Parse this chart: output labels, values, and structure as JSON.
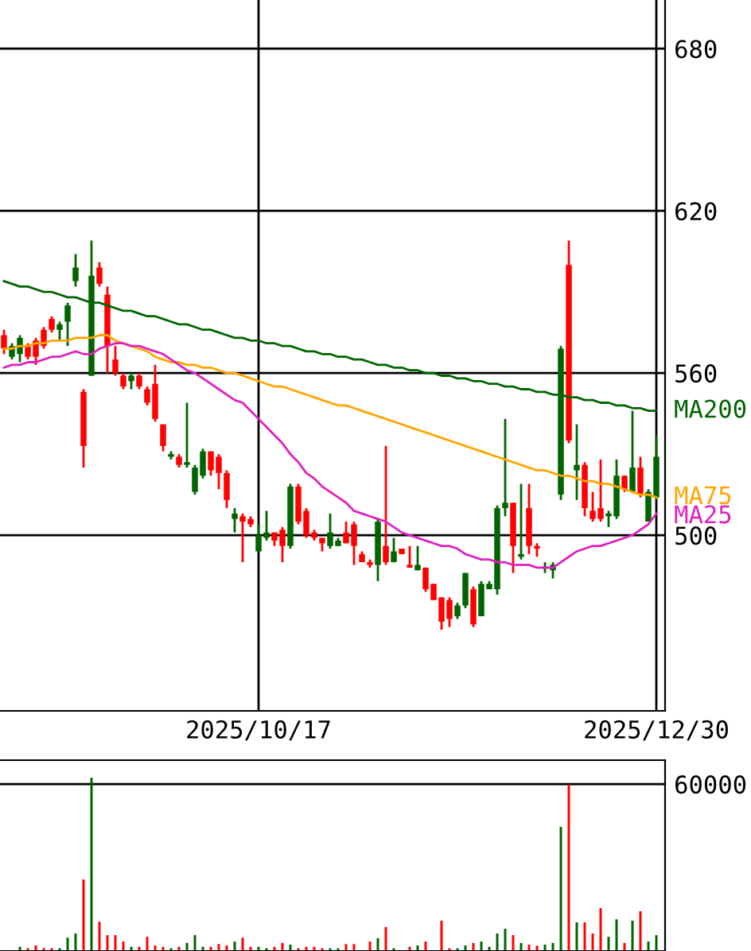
{
  "chart_data": [
    {
      "type": "candlestick",
      "categories": [
        null,
        null,
        null,
        null,
        null,
        null,
        null,
        null,
        null,
        null,
        null,
        null,
        null,
        null,
        null,
        null,
        null,
        null,
        null,
        null,
        null,
        null,
        null,
        null,
        null,
        null,
        null,
        null,
        null,
        null,
        null,
        null,
        "2025/10/17",
        null,
        null,
        null,
        null,
        null,
        null,
        null,
        null,
        null,
        null,
        null,
        null,
        null,
        null,
        null,
        null,
        null,
        null,
        null,
        null,
        null,
        null,
        null,
        null,
        null,
        null,
        null,
        null,
        null,
        null,
        null,
        null,
        null,
        null,
        null,
        null,
        null,
        null,
        null,
        null,
        null,
        null,
        null,
        null,
        null,
        null,
        null,
        null,
        null,
        "2025/12/30"
      ],
      "ohlc": [
        [
          569,
          576,
          567,
          574
        ],
        [
          570,
          571,
          565,
          566
        ],
        [
          573,
          574,
          564,
          567
        ],
        [
          566,
          571,
          565,
          570
        ],
        [
          566,
          573,
          563,
          572
        ],
        [
          570,
          577,
          569,
          576
        ],
        [
          576,
          581,
          575,
          580
        ],
        [
          578,
          579,
          572,
          576
        ],
        [
          585,
          586,
          570,
          579
        ],
        [
          599,
          604,
          592,
          594
        ],
        [
          533,
          554,
          525,
          553
        ],
        [
          596,
          609,
          559,
          559
        ],
        [
          593,
          601,
          592,
          599
        ],
        [
          570,
          592,
          560,
          589
        ],
        [
          560,
          570,
          559,
          565
        ],
        [
          555,
          560,
          554,
          559
        ],
        [
          559,
          560,
          554,
          557
        ],
        [
          555,
          560,
          554,
          559
        ],
        [
          549,
          555,
          548,
          554
        ],
        [
          543,
          563,
          542,
          556
        ],
        [
          533,
          541,
          531,
          541
        ],
        [
          530,
          531,
          528,
          529
        ],
        [
          526,
          530,
          525,
          529
        ],
        [
          527,
          549,
          525,
          526
        ],
        [
          525,
          526,
          515,
          516
        ],
        [
          531,
          532,
          521,
          522
        ],
        [
          524,
          531,
          522,
          531
        ],
        [
          523,
          530,
          517,
          529
        ],
        [
          513,
          524,
          510,
          523
        ],
        [
          508,
          510,
          501,
          506
        ],
        [
          505,
          508,
          490,
          507
        ],
        [
          504,
          507,
          503,
          506
        ],
        [
          500,
          504,
          494,
          494
        ],
        [
          501,
          509,
          498,
          499
        ],
        [
          498,
          501,
          496,
          501
        ],
        [
          496,
          503,
          490,
          502
        ],
        [
          518,
          519,
          495,
          496
        ],
        [
          505,
          519,
          504,
          518
        ],
        [
          500,
          510,
          499,
          509
        ],
        [
          499,
          502,
          498,
          501
        ],
        [
          497,
          499,
          494,
          499
        ],
        [
          501,
          508,
          495,
          496
        ],
        [
          498,
          499,
          496,
          496
        ],
        [
          497,
          505,
          497,
          501
        ],
        [
          496,
          505,
          489,
          504
        ],
        [
          490,
          494,
          490,
          493
        ],
        [
          489,
          491,
          488,
          490
        ],
        [
          505,
          506,
          483,
          489
        ],
        [
          490,
          533,
          489,
          496
        ],
        [
          494,
          499,
          490,
          490
        ],
        [
          493,
          495,
          493,
          495
        ],
        [
          488,
          496,
          488,
          489
        ],
        [
          489,
          496,
          487,
          487
        ],
        [
          480,
          488,
          479,
          488
        ],
        [
          476,
          482,
          476,
          482
        ],
        [
          468,
          477,
          465,
          477
        ],
        [
          469,
          477,
          466,
          476
        ],
        [
          474,
          475,
          469,
          470
        ],
        [
          486,
          486,
          473,
          474
        ],
        [
          467,
          481,
          466,
          480
        ],
        [
          482,
          483,
          470,
          470
        ],
        [
          482,
          483,
          480,
          480
        ],
        [
          510,
          511,
          478,
          480
        ],
        [
          512,
          543,
          507,
          510
        ],
        [
          496,
          512,
          486,
          512
        ],
        [
          493,
          519,
          491,
          492
        ],
        [
          496,
          519,
          493,
          510
        ],
        [
          495,
          497,
          492,
          496
        ],
        [
          488,
          490,
          486,
          488
        ],
        [
          489,
          490,
          484,
          487
        ],
        [
          569,
          570,
          513,
          515
        ],
        [
          535,
          609,
          534,
          600
        ],
        [
          526,
          541,
          513,
          524
        ],
        [
          510,
          527,
          507,
          526
        ],
        [
          506,
          516,
          505,
          509
        ],
        [
          506,
          528,
          505,
          510
        ],
        [
          508,
          509,
          503,
          507
        ],
        [
          522,
          528,
          506,
          507
        ],
        [
          517,
          522,
          516,
          522
        ],
        [
          525,
          546,
          516,
          516
        ],
        [
          515,
          529,
          514,
          525
        ],
        [
          516,
          517,
          505,
          505
        ],
        [
          529,
          537,
          513,
          514
        ]
      ],
      "colors": [
        "#ff0000",
        "#006400",
        "#006400",
        "#ff0000",
        "#ff0000",
        "#ff0000",
        "#ff0000",
        "#006400",
        "#006400",
        "#006400",
        "#ff0000",
        "#006400",
        "#ff0000",
        "#ff0000",
        "#ff0000",
        "#ff0000",
        "#006400",
        "#ff0000",
        "#ff0000",
        "#ff0000",
        "#ff0000",
        "#006400",
        "#ff0000",
        "#006400",
        "#006400",
        "#006400",
        "#ff0000",
        "#ff0000",
        "#ff0000",
        "#006400",
        "#ff0000",
        "#ff0000",
        "#006400",
        "#006400",
        "#ff0000",
        "#ff0000",
        "#006400",
        "#ff0000",
        "#ff0000",
        "#ff0000",
        "#ff0000",
        "#006400",
        "#006400",
        "#ff0000",
        "#ff0000",
        "#ff0000",
        "#ff0000",
        "#006400",
        "#ff0000",
        "#006400",
        "#ff0000",
        "#ff0000",
        "#006400",
        "#ff0000",
        "#ff0000",
        "#ff0000",
        "#ff0000",
        "#006400",
        "#006400",
        "#ff0000",
        "#006400",
        "#006400",
        "#006400",
        "#006400",
        "#ff0000",
        "#006400",
        "#ff0000",
        "#ff0000",
        "#006400",
        "#006400",
        "#006400",
        "#ff0000",
        "#006400",
        "#ff0000",
        "#ff0000",
        "#ff0000",
        "#006400",
        "#006400",
        "#ff0000",
        "#006400",
        "#ff0000",
        "#006400",
        "#006400"
      ],
      "series": [
        {
          "name": "MA200",
          "type": "line",
          "color": "#006400",
          "values": [
            594,
            593,
            592,
            592,
            591,
            590,
            590,
            589,
            588,
            588,
            587,
            586,
            586,
            585,
            584,
            583,
            583,
            582,
            581,
            581,
            580,
            579,
            578,
            578,
            577,
            576,
            576,
            575,
            574,
            573,
            573,
            572,
            572,
            571,
            571,
            570,
            570,
            569,
            568,
            568,
            567,
            567,
            566,
            566,
            565,
            565,
            564,
            563,
            563,
            562,
            562,
            561,
            561,
            560,
            560,
            559,
            559,
            558,
            558,
            557,
            557,
            556,
            556,
            555,
            555,
            554,
            554,
            553,
            553,
            552,
            552,
            551,
            551,
            550,
            550,
            549,
            549,
            548,
            548,
            547,
            547,
            546,
            546
          ]
        },
        {
          "name": "MA75",
          "type": "line",
          "color": "#ffa500",
          "values": [
            569,
            569,
            570,
            570,
            571,
            571,
            572,
            572,
            572,
            573,
            573,
            573,
            574,
            574,
            572,
            571,
            570,
            569,
            568,
            566,
            565,
            564,
            564,
            563,
            563,
            562,
            562,
            561,
            560,
            560,
            559,
            558,
            557,
            556,
            555,
            555,
            554,
            553,
            552,
            551,
            550,
            549,
            548,
            548,
            547,
            546,
            545,
            544,
            543,
            542,
            541,
            540,
            539,
            538,
            537,
            536,
            535,
            534,
            533,
            532,
            531,
            530,
            529,
            528,
            527,
            526,
            525,
            524,
            524,
            523,
            522,
            522,
            521,
            520,
            520,
            519,
            519,
            518,
            517,
            516,
            515,
            515,
            514
          ]
        },
        {
          "name": "MA25",
          "type": "line",
          "color": "#e020c0",
          "values": [
            562,
            563,
            563,
            564,
            564,
            565,
            566,
            566,
            567,
            568,
            567,
            567,
            569,
            570,
            571,
            571,
            570,
            570,
            569,
            568,
            567,
            565,
            563,
            561,
            560,
            558,
            556,
            554,
            552,
            550,
            549,
            546,
            543,
            540,
            537,
            534,
            530,
            527,
            523,
            521,
            518,
            516,
            514,
            512,
            509,
            508,
            507,
            506,
            505,
            503,
            501,
            500,
            499,
            498,
            497,
            496,
            496,
            495,
            493,
            492,
            491,
            491,
            490,
            490,
            489,
            489,
            489,
            488,
            488,
            488,
            490,
            492,
            494,
            495,
            496,
            496,
            497,
            498,
            499,
            500,
            502,
            504,
            508
          ]
        }
      ],
      "ylim": [
        435,
        698
      ],
      "yticks": [
        500,
        560,
        620,
        680
      ],
      "grid": true
    },
    {
      "type": "bar",
      "categories": [
        null,
        null,
        null,
        null,
        null,
        null,
        null,
        null,
        null,
        null,
        null,
        null,
        null,
        null,
        null,
        null,
        null,
        null,
        null,
        null,
        null,
        null,
        null,
        null,
        null,
        null,
        null,
        null,
        null,
        null,
        null,
        null,
        null,
        null,
        null,
        null,
        null,
        null,
        null,
        null,
        null,
        null,
        null,
        null,
        null,
        null,
        null,
        null,
        null,
        null,
        null,
        null,
        null,
        null,
        null,
        null,
        null,
        null,
        null,
        null,
        null,
        null,
        null,
        null,
        null,
        null,
        null,
        null,
        null,
        null,
        null,
        null,
        null,
        null,
        null,
        null,
        null,
        null,
        null,
        null,
        null,
        null,
        null
      ],
      "values": [
        null,
        null,
        1500,
        1000,
        2000,
        1000,
        1000,
        1000,
        4800,
        6300,
        25700,
        62300,
        10500,
        5700,
        5700,
        3400,
        1500,
        1500,
        5100,
        2000,
        1500,
        1000,
        1500,
        2900,
        5700,
        1500,
        1500,
        2500,
        2000,
        3400,
        4800,
        1500,
        1500,
        1000,
        1500,
        2900,
        2300,
        1000,
        1500,
        1500,
        1000,
        1000,
        1000,
        2500,
        2500,
        null,
        3400,
        4600,
        8600,
        1000,
        null,
        1500,
        2000,
        3400,
        null,
        10900,
        1000,
        1000,
        2000,
        2900,
        3400,
        1500,
        6300,
        8000,
        5700,
        2900,
        2300,
        1900,
        2300,
        2900,
        44600,
        59800,
        10300,
        10300,
        6300,
        15400,
        5100,
        11400,
        2900,
        10900,
        14300,
        3400,
        5700
      ],
      "colors": [
        "#ff0000",
        "#006400",
        "#006400",
        "#ff0000",
        "#ff0000",
        "#ff0000",
        "#ff0000",
        "#006400",
        "#006400",
        "#006400",
        "#ff0000",
        "#006400",
        "#ff0000",
        "#ff0000",
        "#ff0000",
        "#ff0000",
        "#006400",
        "#ff0000",
        "#ff0000",
        "#ff0000",
        "#ff0000",
        "#006400",
        "#ff0000",
        "#006400",
        "#006400",
        "#006400",
        "#ff0000",
        "#ff0000",
        "#ff0000",
        "#006400",
        "#ff0000",
        "#ff0000",
        "#006400",
        "#006400",
        "#ff0000",
        "#ff0000",
        "#006400",
        "#ff0000",
        "#ff0000",
        "#ff0000",
        "#ff0000",
        "#006400",
        "#006400",
        "#ff0000",
        "#ff0000",
        "#ff0000",
        "#ff0000",
        "#006400",
        "#ff0000",
        "#006400",
        "#ff0000",
        "#ff0000",
        "#006400",
        "#ff0000",
        "#ff0000",
        "#ff0000",
        "#ff0000",
        "#006400",
        "#006400",
        "#ff0000",
        "#006400",
        "#006400",
        "#006400",
        "#006400",
        "#ff0000",
        "#006400",
        "#ff0000",
        "#ff0000",
        "#006400",
        "#006400",
        "#006400",
        "#ff0000",
        "#006400",
        "#ff0000",
        "#ff0000",
        "#ff0000",
        "#006400",
        "#006400",
        "#ff0000",
        "#006400",
        "#ff0000",
        "#006400",
        "#006400"
      ],
      "ylim": [
        0,
        68600
      ],
      "yticks": [
        60000
      ],
      "grid": "y"
    }
  ]
}
